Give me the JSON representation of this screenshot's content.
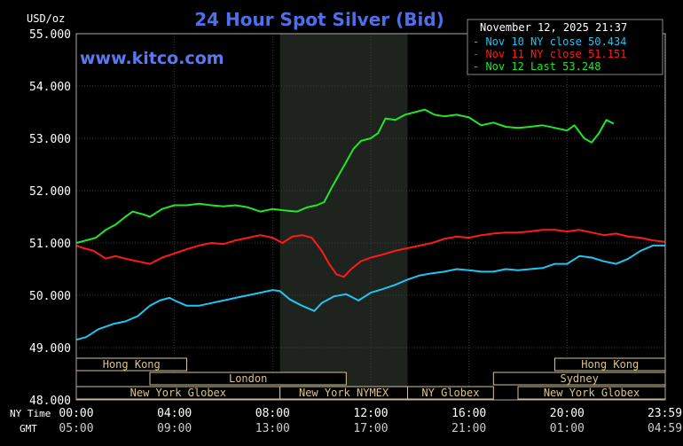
{
  "chart_data": {
    "type": "line",
    "title": "24 Hour Spot Silver (Bid)",
    "unit_label": "USD/oz",
    "watermark": "www.kitco.com",
    "timestamp": "November 12, 2025 21:37",
    "ylim": [
      48.0,
      55.0
    ],
    "y_ticks": [
      "55.000",
      "54.000",
      "53.000",
      "52.000",
      "51.000",
      "50.000",
      "49.000",
      "48.000"
    ],
    "y_tick_values": [
      55,
      54,
      53,
      52,
      51,
      50,
      49,
      48
    ],
    "xlim": [
      0,
      24
    ],
    "x_tick_hours": [
      0,
      4,
      8,
      12,
      16,
      20,
      23.983
    ],
    "x_ticks_ny": [
      "00:00",
      "04:00",
      "08:00",
      "12:00",
      "16:00",
      "20:00",
      "23:59"
    ],
    "x_ticks_gmt": [
      "05:00",
      "09:00",
      "13:00",
      "17:00",
      "21:00",
      "01:00",
      "04:59"
    ],
    "ny_time_label": "NY Time",
    "gmt_label": "GMT",
    "highlight_hours": [
      8.3,
      13.5
    ],
    "grid": true,
    "legend_position": "top-right",
    "legend": [
      {
        "text": "Nov 10 NY close 50.434",
        "color": "#21c4f0"
      },
      {
        "text": "Nov 11 NY close 51.151",
        "color": "#ff1a1a"
      },
      {
        "text": "Nov 12 Last 53.248",
        "color": "#22e52a"
      }
    ],
    "sessions": [
      {
        "label": "Hong Kong",
        "row": 0,
        "start": 0,
        "end": 4.5
      },
      {
        "label": "Hong Kong",
        "row": 0,
        "start": 19.5,
        "end": 24
      },
      {
        "label": "London",
        "row": 1,
        "start": 3,
        "end": 11
      },
      {
        "label": "Sydney",
        "row": 1,
        "start": 17,
        "end": 24
      },
      {
        "label": "New York Globex",
        "row": 2,
        "start": 0,
        "end": 8.3
      },
      {
        "label": "New York NYMEX",
        "row": 2,
        "start": 8.3,
        "end": 13.5
      },
      {
        "label": "NY Globex",
        "row": 2,
        "start": 13.5,
        "end": 17
      },
      {
        "label": "New York Globex",
        "row": 2,
        "start": 18,
        "end": 24
      }
    ],
    "series": [
      {
        "name": "Nov 10",
        "color": "#21c4f0",
        "x": [
          0,
          0.4,
          0.9,
          1.5,
          2,
          2.5,
          3,
          3.4,
          3.8,
          4.1,
          4.5,
          5,
          5.5,
          6,
          6.5,
          7,
          7.5,
          8,
          8.3,
          8.7,
          9.2,
          9.7,
          10,
          10.5,
          11,
          11.5,
          12,
          12.5,
          13,
          13.5,
          14,
          14.5,
          15,
          15.5,
          16,
          16.5,
          17,
          17.5,
          18,
          18.5,
          19,
          19.5,
          20,
          20.5,
          21,
          21.5,
          22,
          22.5,
          23,
          23.5,
          23.98
        ],
        "y": [
          49.15,
          49.2,
          49.35,
          49.45,
          49.5,
          49.6,
          49.8,
          49.9,
          49.95,
          49.88,
          49.8,
          49.8,
          49.85,
          49.9,
          49.95,
          50.0,
          50.05,
          50.1,
          50.08,
          49.92,
          49.8,
          49.7,
          49.85,
          49.98,
          50.02,
          49.9,
          50.05,
          50.12,
          50.2,
          50.3,
          50.38,
          50.42,
          50.45,
          50.5,
          50.48,
          50.45,
          50.45,
          50.5,
          50.48,
          50.5,
          50.52,
          50.6,
          50.6,
          50.75,
          50.72,
          50.65,
          50.6,
          50.7,
          50.85,
          50.95,
          50.95
        ]
      },
      {
        "name": "Nov 11",
        "color": "#ff1a1a",
        "x": [
          0,
          0.3,
          0.7,
          1.2,
          1.6,
          2,
          2.5,
          3,
          3.5,
          4,
          4.5,
          5,
          5.5,
          6,
          6.5,
          7,
          7.5,
          8,
          8.4,
          8.8,
          9.2,
          9.6,
          10,
          10.3,
          10.6,
          10.9,
          11.2,
          11.6,
          12,
          12.5,
          13,
          13.5,
          14,
          14.5,
          15,
          15.5,
          16,
          16.5,
          17,
          17.5,
          18,
          18.5,
          19,
          19.5,
          20,
          20.5,
          21,
          21.5,
          22,
          22.5,
          23,
          23.5,
          23.98
        ],
        "y": [
          50.95,
          50.9,
          50.85,
          50.7,
          50.75,
          50.7,
          50.65,
          50.6,
          50.72,
          50.8,
          50.88,
          50.95,
          51.0,
          50.98,
          51.05,
          51.1,
          51.15,
          51.1,
          51.0,
          51.12,
          51.15,
          51.1,
          50.85,
          50.6,
          50.4,
          50.35,
          50.5,
          50.65,
          50.72,
          50.78,
          50.85,
          50.9,
          50.95,
          51.0,
          51.08,
          51.12,
          51.1,
          51.15,
          51.18,
          51.2,
          51.2,
          51.22,
          51.25,
          51.25,
          51.22,
          51.25,
          51.2,
          51.15,
          51.18,
          51.12,
          51.1,
          51.05,
          51.02
        ]
      },
      {
        "name": "Nov 12",
        "color": "#22e52a",
        "x": [
          0,
          0.4,
          0.8,
          1.2,
          1.6,
          2,
          2.3,
          2.7,
          3,
          3.5,
          4,
          4.5,
          5,
          5.5,
          6,
          6.5,
          7,
          7.5,
          8,
          8.5,
          9,
          9.4,
          9.8,
          10.1,
          10.4,
          10.7,
          11,
          11.3,
          11.6,
          12,
          12.3,
          12.6,
          13,
          13.4,
          13.8,
          14.2,
          14.6,
          15,
          15.5,
          16,
          16.5,
          17,
          17.5,
          18,
          18.5,
          19,
          19.5,
          20,
          20.3,
          20.7,
          21,
          21.3,
          21.6,
          21.9
        ],
        "y": [
          51.0,
          51.05,
          51.1,
          51.25,
          51.35,
          51.5,
          51.6,
          51.55,
          51.5,
          51.65,
          51.72,
          51.72,
          51.75,
          51.72,
          51.7,
          51.72,
          51.68,
          51.6,
          51.65,
          51.62,
          51.6,
          51.68,
          51.72,
          51.78,
          52.05,
          52.3,
          52.55,
          52.8,
          52.95,
          53.0,
          53.1,
          53.38,
          53.35,
          53.45,
          53.5,
          53.55,
          53.45,
          53.42,
          53.45,
          53.4,
          53.25,
          53.3,
          53.22,
          53.2,
          53.22,
          53.25,
          53.2,
          53.15,
          53.25,
          53.0,
          52.92,
          53.1,
          53.35,
          53.28
        ]
      }
    ]
  }
}
